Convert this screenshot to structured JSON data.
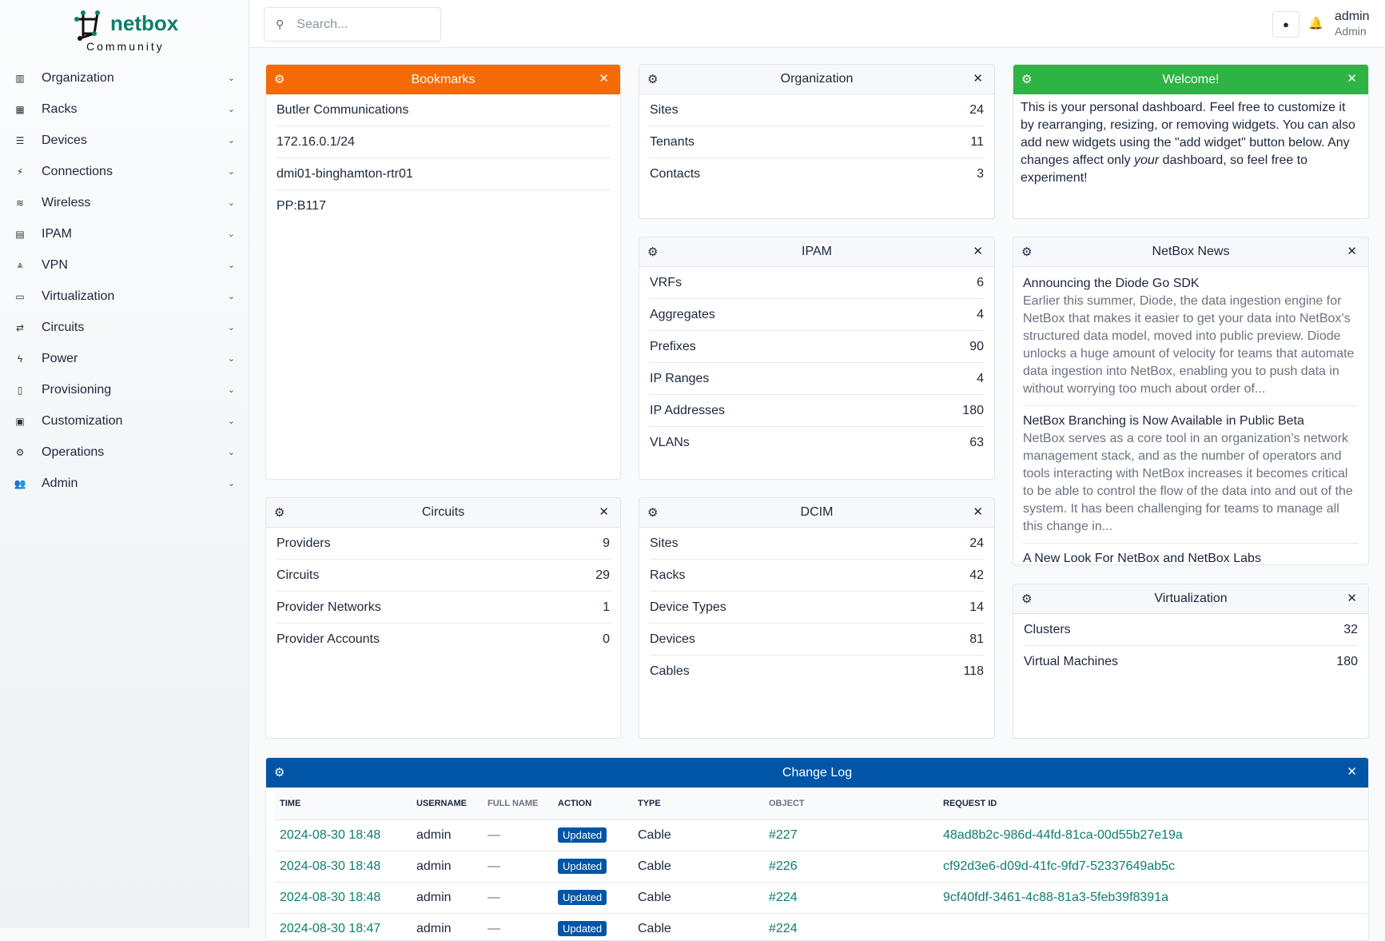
{
  "brand": {
    "name": "netbox",
    "edition": "Community"
  },
  "sidebar": {
    "items": [
      {
        "label": "Organization",
        "icon": "building-icon"
      },
      {
        "label": "Racks",
        "icon": "rack-icon"
      },
      {
        "label": "Devices",
        "icon": "server-icon"
      },
      {
        "label": "Connections",
        "icon": "plug-icon"
      },
      {
        "label": "Wireless",
        "icon": "wifi-icon"
      },
      {
        "label": "IPAM",
        "icon": "ipam-icon"
      },
      {
        "label": "VPN",
        "icon": "vpn-icon"
      },
      {
        "label": "Virtualization",
        "icon": "monitor-icon"
      },
      {
        "label": "Circuits",
        "icon": "circuit-icon"
      },
      {
        "label": "Power",
        "icon": "power-icon"
      },
      {
        "label": "Provisioning",
        "icon": "file-icon"
      },
      {
        "label": "Customization",
        "icon": "toolbox-icon"
      },
      {
        "label": "Operations",
        "icon": "cogs-icon"
      },
      {
        "label": "Admin",
        "icon": "users-icon"
      }
    ]
  },
  "topbar": {
    "search_placeholder": "Search...",
    "user": "admin",
    "role": "Admin"
  },
  "colors": {
    "bookmarks": "#f46a06",
    "welcome": "#2fb344",
    "changelog": "#0055a6",
    "link": "#0d7e6b"
  },
  "bookmarks": {
    "title": "Bookmarks",
    "items": [
      "Butler Communications",
      "172.16.0.1/24",
      "dmi01-binghamton-rtr01",
      "PP:B117"
    ]
  },
  "organization": {
    "title": "Organization",
    "rows": [
      {
        "label": "Sites",
        "value": "24"
      },
      {
        "label": "Tenants",
        "value": "11"
      },
      {
        "label": "Contacts",
        "value": "3"
      }
    ]
  },
  "welcome": {
    "title": "Welcome!",
    "text_before": "This is your personal dashboard. Feel free to customize it by rearranging, resizing, or removing widgets. You can also add new widgets using the \"add widget\" button below. Any changes affect only ",
    "text_em": "your",
    "text_after": " dashboard, so feel free to experiment!"
  },
  "ipam": {
    "title": "IPAM",
    "rows": [
      {
        "label": "VRFs",
        "value": "6"
      },
      {
        "label": "Aggregates",
        "value": "4"
      },
      {
        "label": "Prefixes",
        "value": "90"
      },
      {
        "label": "IP Ranges",
        "value": "4"
      },
      {
        "label": "IP Addresses",
        "value": "180"
      },
      {
        "label": "VLANs",
        "value": "63"
      }
    ]
  },
  "news": {
    "title": "NetBox News",
    "items": [
      {
        "title": "Announcing the Diode Go SDK",
        "desc": "Earlier this summer, Diode, the data ingestion engine for NetBox that makes it easier to get your data into NetBox’s structured data model, moved into public preview. Diode unlocks a huge amount of velocity for teams that automate data ingestion into NetBox, enabling you to push data in without worrying too much about order of..."
      },
      {
        "title": "NetBox Branching is Now Available in Public Beta",
        "desc": "NetBox serves as a core tool in an organization’s network management stack, and as the number of operators and tools interacting with NetBox increases it becomes critical to be able to control the flow of the data into and out of the system. It has been challenging for teams to manage all this change in..."
      },
      {
        "title": "A New Look For NetBox and NetBox Labs",
        "desc": ""
      }
    ]
  },
  "circuits": {
    "title": "Circuits",
    "rows": [
      {
        "label": "Providers",
        "value": "9"
      },
      {
        "label": "Circuits",
        "value": "29"
      },
      {
        "label": "Provider Networks",
        "value": "1"
      },
      {
        "label": "Provider Accounts",
        "value": "0"
      }
    ]
  },
  "dcim": {
    "title": "DCIM",
    "rows": [
      {
        "label": "Sites",
        "value": "24"
      },
      {
        "label": "Racks",
        "value": "42"
      },
      {
        "label": "Device Types",
        "value": "14"
      },
      {
        "label": "Devices",
        "value": "81"
      },
      {
        "label": "Cables",
        "value": "118"
      }
    ]
  },
  "virtualization": {
    "title": "Virtualization",
    "rows": [
      {
        "label": "Clusters",
        "value": "32"
      },
      {
        "label": "Virtual Machines",
        "value": "180"
      }
    ]
  },
  "changelog": {
    "title": "Change Log",
    "columns": [
      "TIME",
      "USERNAME",
      "FULL NAME",
      "ACTION",
      "TYPE",
      "OBJECT",
      "REQUEST ID"
    ],
    "rows": [
      [
        "2024-08-30 18:48",
        "admin",
        "—",
        "Updated",
        "Cable",
        "#227",
        "48ad8b2c-986d-44fd-81ca-00d55b27e19a"
      ],
      [
        "2024-08-30 18:48",
        "admin",
        "—",
        "Updated",
        "Cable",
        "#226",
        "cf92d3e6-d09d-41fc-9fd7-52337649ab5c"
      ],
      [
        "2024-08-30 18:48",
        "admin",
        "—",
        "Updated",
        "Cable",
        "#224",
        "9cf40fdf-3461-4c88-81a3-5feb39f8391a"
      ],
      [
        "2024-08-30 18:47",
        "admin",
        "—",
        "Updated",
        "Cable",
        "#224",
        ""
      ]
    ]
  }
}
